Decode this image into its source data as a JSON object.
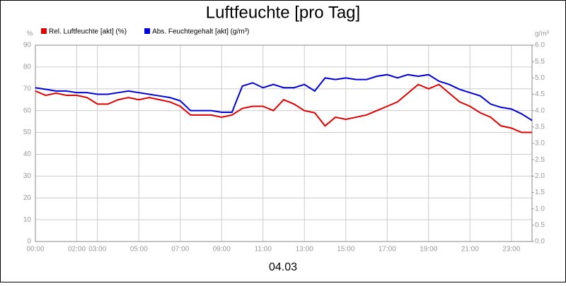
{
  "chart_data": {
    "type": "line",
    "title": "Luftfeuchte [pro Tag]",
    "x_label": "04.03",
    "y_label": "%",
    "y2_label": "g/m³",
    "x": [
      0,
      0.5,
      1,
      1.5,
      2,
      2.5,
      3,
      3.5,
      4,
      4.5,
      5,
      5.5,
      6,
      6.5,
      7,
      7.5,
      8,
      8.5,
      9,
      9.5,
      10,
      10.5,
      11,
      11.5,
      12,
      12.5,
      13,
      13.5,
      14,
      14.5,
      15,
      15.5,
      16,
      16.5,
      17,
      17.5,
      18,
      18.5,
      19,
      19.5,
      20,
      20.5,
      21,
      21.5,
      22,
      22.5,
      23,
      23.5,
      24
    ],
    "series": [
      {
        "name": "Rel. Luftfeuchte [akt] (%)",
        "color": "#e00000",
        "values": [
          69,
          67,
          68,
          67,
          67,
          66,
          63,
          63,
          65,
          66,
          65,
          66,
          65,
          64,
          62,
          58,
          58,
          58,
          57,
          58,
          61,
          62,
          62,
          60,
          65,
          63,
          60,
          59,
          53,
          57,
          56,
          57,
          58,
          60,
          62,
          64,
          68,
          72,
          70,
          72,
          68,
          64,
          62,
          59,
          57,
          53,
          52,
          50,
          50
        ]
      },
      {
        "name": "Abs. Feuchtegehalt [akt] (g/m³)",
        "color": "#0000dd",
        "axis": "y2",
        "values": [
          4.7,
          4.65,
          4.6,
          4.6,
          4.55,
          4.55,
          4.5,
          4.5,
          4.55,
          4.6,
          4.55,
          4.5,
          4.45,
          4.4,
          4.3,
          4.0,
          4.0,
          4.0,
          3.95,
          3.95,
          4.75,
          4.85,
          4.7,
          4.8,
          4.7,
          4.7,
          4.8,
          4.6,
          5.0,
          4.95,
          5.0,
          4.95,
          4.95,
          5.05,
          5.1,
          5.0,
          5.1,
          5.05,
          5.1,
          4.9,
          4.8,
          4.65,
          4.55,
          4.45,
          4.2,
          4.1,
          4.05,
          3.9,
          3.7
        ]
      }
    ],
    "xlim": [
      0,
      24
    ],
    "xticks": [
      {
        "value": 0,
        "label": "00:00"
      },
      {
        "value": 2,
        "label": "02:00"
      },
      {
        "value": 3,
        "label": "03:00"
      },
      {
        "value": 5,
        "label": "05:00"
      },
      {
        "value": 7,
        "label": "07:00"
      },
      {
        "value": 9,
        "label": "09:00"
      },
      {
        "value": 11,
        "label": "11:00"
      },
      {
        "value": 13,
        "label": "13:00"
      },
      {
        "value": 15,
        "label": "15:00"
      },
      {
        "value": 17,
        "label": "17:00"
      },
      {
        "value": 19,
        "label": "19:00"
      },
      {
        "value": 21,
        "label": "21:00"
      },
      {
        "value": 23,
        "label": "23:00"
      }
    ],
    "ylim": [
      0,
      90
    ],
    "yticks": [
      0,
      10,
      20,
      30,
      40,
      50,
      60,
      70,
      80,
      90
    ],
    "y2lim": [
      0,
      6
    ],
    "y2ticks": [
      {
        "value": 0,
        "label": "0.0"
      },
      0.5,
      {
        "value": 1,
        "label": "1.0"
      },
      1.5,
      {
        "value": 2,
        "label": "2.0"
      },
      2.5,
      {
        "value": 3,
        "label": "3.0"
      },
      3.5,
      {
        "value": 4,
        "label": "4.0"
      },
      4.5,
      {
        "value": 5,
        "label": "5.0"
      },
      5.5,
      {
        "value": 6,
        "label": "6.0"
      }
    ],
    "grid": true
  }
}
